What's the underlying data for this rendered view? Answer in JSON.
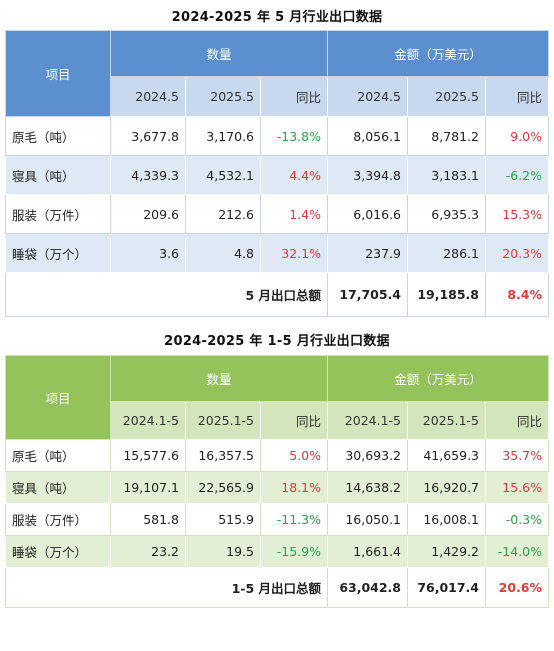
{
  "table1": {
    "title": "2024-2025 年 5 月行业出口数据",
    "header": {
      "item": "项目",
      "qty": "数量",
      "amount": "金额（万美元）"
    },
    "sub": [
      "2024.5",
      "2025.5",
      "同比",
      "2024.5",
      "2025.5",
      "同比"
    ],
    "rows": [
      {
        "label": "原毛（吨）",
        "v": [
          "3,677.8",
          "3,170.6",
          "-13.8%",
          "8,056.1",
          "8,781.2",
          "9.0%"
        ]
      },
      {
        "label": "寝具（吨）",
        "v": [
          "4,339.3",
          "4,532.1",
          "4.4%",
          "3,394.8",
          "3,183.1",
          "-6.2%"
        ]
      },
      {
        "label": "服装（万件）",
        "v": [
          "209.6",
          "212.6",
          "1.4%",
          "6,016.6",
          "6,935.3",
          "15.3%"
        ]
      },
      {
        "label": "睡袋（万个）",
        "v": [
          "3.6",
          "4.8",
          "32.1%",
          "237.9",
          "286.1",
          "20.3%"
        ]
      }
    ],
    "total": {
      "label": "5 月出口总额",
      "v": [
        "17,705.4",
        "19,185.8",
        "8.4%"
      ]
    }
  },
  "table2": {
    "title": "2024-2025 年 1-5 月行业出口数据",
    "header": {
      "item": "项目",
      "qty": "数量",
      "amount": "金额（万美元）"
    },
    "sub": [
      "2024.1-5",
      "2025.1-5",
      "同比",
      "2024.1-5",
      "2025.1-5",
      "同比"
    ],
    "rows": [
      {
        "label": "原毛（吨）",
        "v": [
          "15,577.6",
          "16,357.5",
          "5.0%",
          "30,693.2",
          "41,659.3",
          "35.7%"
        ]
      },
      {
        "label": "寝具（吨）",
        "v": [
          "19,107.1",
          "22,565.9",
          "18.1%",
          "14,638.2",
          "16,920.7",
          "15.6%"
        ]
      },
      {
        "label": "服装（万件）",
        "v": [
          "581.8",
          "515.9",
          "-11.3%",
          "16,050.1",
          "16,008.1",
          "-0.3%"
        ]
      },
      {
        "label": "睡袋（万个）",
        "v": [
          "23.2",
          "19.5",
          "-15.9%",
          "1,661.4",
          "1,429.2",
          "-14.0%"
        ]
      }
    ],
    "total": {
      "label": "1-5 月出口总额",
      "v": [
        "63,042.8",
        "76,017.4",
        "20.6%"
      ]
    }
  },
  "colors": {
    "blue_header": "#5b8fd0",
    "blue_sub": "#c7d8ef",
    "blue_band": "#dfe9f6",
    "green_header": "#93c35a",
    "green_sub": "#d3e6bb",
    "green_band": "#e3efd4",
    "positive": "#e23a3a",
    "negative": "#2aa24b"
  }
}
